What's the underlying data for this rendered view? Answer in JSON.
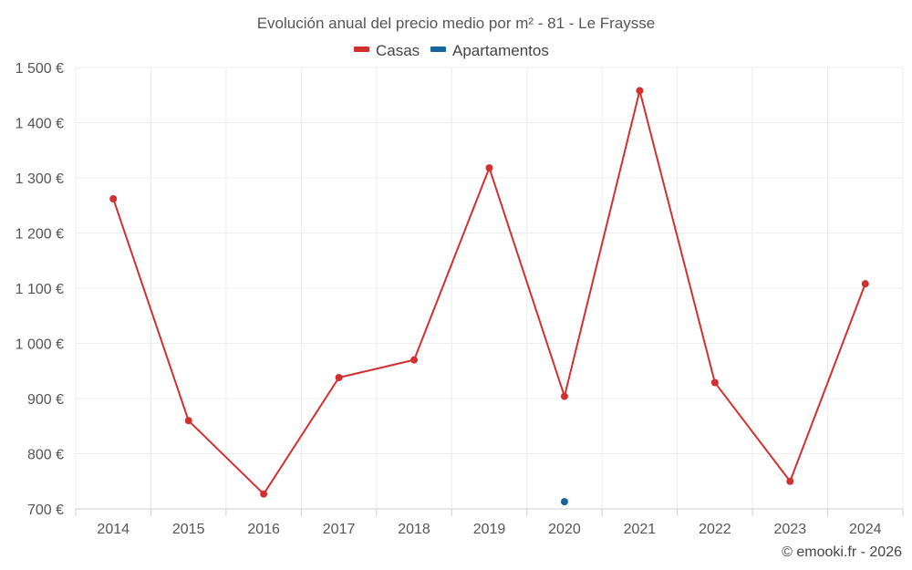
{
  "chart_data": {
    "type": "line",
    "title": "Evolución anual del precio medio por m² - 81 - Le Fraysse",
    "categories": [
      "2014",
      "2015",
      "2016",
      "2017",
      "2018",
      "2019",
      "2020",
      "2021",
      "2022",
      "2023",
      "2024"
    ],
    "series": [
      {
        "name": "Casas",
        "color": "#d32f2f",
        "values": [
          1262,
          860,
          727,
          938,
          970,
          1318,
          904,
          1458,
          929,
          750,
          1108
        ]
      },
      {
        "name": "Apartamentos",
        "color": "#1565a0",
        "values": [
          null,
          null,
          null,
          null,
          null,
          null,
          713,
          null,
          null,
          null,
          null
        ]
      }
    ],
    "ylim": [
      700,
      1500
    ],
    "yticks": [
      700,
      800,
      900,
      1000,
      1100,
      1200,
      1300,
      1400,
      1500
    ],
    "ytick_labels": [
      "700 €",
      "800 €",
      "900 €",
      "1 000 €",
      "1 100 €",
      "1 200 €",
      "1 300 €",
      "1 400 €",
      "1 500 €"
    ],
    "xlabel": "",
    "ylabel": "",
    "grid": true,
    "legend_position": "top-center"
  },
  "credit": "© emooki.fr - 2026"
}
